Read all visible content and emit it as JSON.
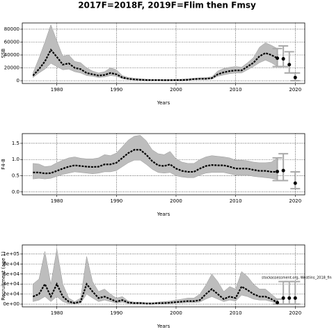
{
  "title": "2017F=2018F, 2019F=Flim then Fmsy",
  "chart_data": [
    {
      "type": "line",
      "ylabel": "SSB",
      "xlabel": "Years",
      "xlim": [
        1974.2,
        2021.6
      ],
      "xticks": [
        1980,
        1990,
        2000,
        2010,
        2020
      ],
      "ylim": [
        -4300,
        89700
      ],
      "yticks": [
        0,
        20000,
        40000,
        60000,
        80000
      ],
      "grid": true,
      "x": [
        1976,
        1977,
        1978,
        1979,
        1980,
        1981,
        1982,
        1983,
        1984,
        1985,
        1986,
        1987,
        1988,
        1989,
        1990,
        1991,
        1992,
        1993,
        1994,
        1995,
        1996,
        1997,
        1998,
        1999,
        2000,
        2001,
        2002,
        2003,
        2004,
        2005,
        2006,
        2007,
        2008,
        2009,
        2010,
        2011,
        2012,
        2013,
        2014,
        2015,
        2016,
        2017
      ],
      "values": [
        8000,
        18000,
        30000,
        48000,
        37000,
        25000,
        27000,
        20000,
        18000,
        12000,
        10000,
        8000,
        9000,
        12000,
        10000,
        5000,
        3000,
        2000,
        1500,
        1000,
        1000,
        1000,
        800,
        800,
        1000,
        1000,
        1500,
        2500,
        3000,
        3000,
        4000,
        10000,
        13000,
        15000,
        16000,
        16000,
        22000,
        28000,
        38000,
        43000,
        40000,
        35000
      ],
      "high": [
        12000,
        35000,
        60000,
        87000,
        62000,
        38000,
        40000,
        30000,
        28000,
        20000,
        15000,
        12000,
        14000,
        20000,
        17000,
        8000,
        5000,
        4000,
        3000,
        2500,
        2000,
        2000,
        2000,
        2000,
        2000,
        2500,
        3000,
        4000,
        4500,
        5000,
        6000,
        15000,
        19000,
        21000,
        22000,
        21000,
        28000,
        36000,
        52000,
        59000,
        55000,
        50000
      ],
      "low": [
        5000,
        12000,
        18000,
        27000,
        22000,
        17000,
        18000,
        14000,
        12000,
        8000,
        7000,
        5000,
        6000,
        8000,
        7000,
        3000,
        2000,
        1000,
        500,
        500,
        500,
        500,
        400,
        400,
        500,
        500,
        1000,
        1500,
        2000,
        2000,
        2500,
        7000,
        9000,
        11000,
        12000,
        12000,
        17000,
        22000,
        28000,
        32000,
        28000,
        22000
      ],
      "forecast": {
        "x": [
          2017,
          2018,
          2019,
          2020
        ],
        "values": [
          35000,
          34000,
          25000,
          5000
        ],
        "low": [
          22000,
          22000,
          12000,
          0
        ],
        "high": [
          50000,
          54000,
          45000,
          12000
        ]
      }
    },
    {
      "type": "line",
      "ylabel": "F4-8",
      "xlabel": "Years",
      "xlim": [
        1974.2,
        2021.6
      ],
      "xticks": [
        1980,
        1990,
        2000,
        2010,
        2020
      ],
      "ylim": [
        -0.09,
        1.8
      ],
      "yticks": [
        {
          "value": 0,
          "label": "0.0"
        },
        0.5,
        {
          "value": 1,
          "label": "1.0"
        },
        1.5
      ],
      "grid": true,
      "x": [
        1976,
        1977,
        1978,
        1979,
        1980,
        1981,
        1982,
        1983,
        1984,
        1985,
        1986,
        1987,
        1988,
        1989,
        1990,
        1991,
        1992,
        1993,
        1994,
        1995,
        1996,
        1997,
        1998,
        1999,
        2000,
        2001,
        2002,
        2003,
        2004,
        2005,
        2006,
        2007,
        2008,
        2009,
        2010,
        2011,
        2012,
        2013,
        2014,
        2015,
        2016,
        2017
      ],
      "values": [
        0.6,
        0.6,
        0.57,
        0.58,
        0.65,
        0.72,
        0.78,
        0.82,
        0.8,
        0.78,
        0.77,
        0.78,
        0.85,
        0.85,
        0.9,
        1.05,
        1.2,
        1.3,
        1.3,
        1.15,
        0.95,
        0.82,
        0.8,
        0.85,
        0.72,
        0.65,
        0.62,
        0.62,
        0.72,
        0.8,
        0.83,
        0.82,
        0.82,
        0.78,
        0.72,
        0.72,
        0.72,
        0.68,
        0.65,
        0.65,
        0.62,
        0.62
      ],
      "high": [
        0.88,
        0.86,
        0.78,
        0.8,
        0.9,
        0.98,
        1.05,
        1.08,
        1.04,
        1.02,
        1.02,
        1.05,
        1.15,
        1.12,
        1.2,
        1.4,
        1.6,
        1.72,
        1.75,
        1.58,
        1.3,
        1.18,
        1.15,
        1.25,
        1.02,
        0.92,
        0.88,
        0.88,
        1.0,
        1.08,
        1.12,
        1.1,
        1.08,
        1.05,
        0.98,
        0.98,
        0.96,
        0.92,
        0.9,
        0.9,
        0.92,
        1.05
      ],
      "low": [
        0.4,
        0.42,
        0.4,
        0.42,
        0.48,
        0.54,
        0.58,
        0.62,
        0.6,
        0.58,
        0.56,
        0.58,
        0.62,
        0.62,
        0.66,
        0.78,
        0.9,
        0.98,
        0.98,
        0.85,
        0.7,
        0.6,
        0.58,
        0.6,
        0.5,
        0.46,
        0.44,
        0.44,
        0.52,
        0.58,
        0.6,
        0.6,
        0.6,
        0.56,
        0.52,
        0.52,
        0.52,
        0.48,
        0.46,
        0.44,
        0.42,
        0.38
      ],
      "forecast": {
        "x": [
          2017,
          2018,
          2020
        ],
        "values": [
          0.63,
          0.66,
          0.27
        ],
        "low": [
          0.35,
          0.35,
          0.1
        ],
        "high": [
          1.05,
          1.18,
          0.62
        ]
      }
    },
    {
      "type": "line",
      "ylabel": "Recruitment (age 1)",
      "xlabel": "Years",
      "annotation": "stockassessment.org, Westlins_2018_fin",
      "xlim": [
        1974.2,
        2021.6
      ],
      "xticks": [
        1980,
        1990,
        2000,
        2010,
        2020
      ],
      "ylim": [
        -5500,
        118000
      ],
      "yticks": [
        {
          "value": 0,
          "label": "0e+00"
        },
        {
          "value": 20000,
          "label": "2e+04"
        },
        {
          "value": 40000,
          "label": "4e+04"
        },
        {
          "value": 60000,
          "label": "6e+04"
        },
        {
          "value": 80000,
          "label": "8e+04"
        },
        {
          "value": 100000,
          "label": "1e+05"
        }
      ],
      "grid": true,
      "x": [
        1976,
        1977,
        1978,
        1979,
        1980,
        1981,
        1982,
        1983,
        1984,
        1985,
        1986,
        1987,
        1988,
        1989,
        1990,
        1991,
        1992,
        1993,
        1994,
        1995,
        1996,
        1997,
        1998,
        1999,
        2000,
        2001,
        2002,
        2003,
        2004,
        2005,
        2006,
        2007,
        2008,
        2009,
        2010,
        2011,
        2012,
        2013,
        2014,
        2015,
        2016,
        2017
      ],
      "values": [
        15000,
        20000,
        40000,
        15000,
        40000,
        15000,
        5000,
        2000,
        5000,
        40000,
        25000,
        12000,
        15000,
        10000,
        5000,
        8000,
        3000,
        2000,
        2000,
        1000,
        1000,
        2000,
        2000,
        3000,
        4000,
        5000,
        6000,
        6000,
        8000,
        20000,
        30000,
        20000,
        10000,
        15000,
        12000,
        35000,
        28000,
        20000,
        15000,
        15000,
        10000,
        3000
      ],
      "high": [
        40000,
        50000,
        105000,
        40000,
        110000,
        40000,
        12000,
        5000,
        12000,
        95000,
        45000,
        25000,
        30000,
        20000,
        12000,
        15000,
        6000,
        4000,
        4000,
        3000,
        3000,
        4000,
        5000,
        6000,
        8000,
        10000,
        12000,
        12000,
        20000,
        38000,
        60000,
        45000,
        25000,
        35000,
        30000,
        65000,
        55000,
        40000,
        30000,
        30000,
        20000,
        10000
      ],
      "low": [
        5000,
        8000,
        15000,
        5000,
        15000,
        5000,
        1000,
        500,
        2000,
        20000,
        12000,
        5000,
        8000,
        5000,
        2000,
        4000,
        1000,
        500,
        500,
        300,
        300,
        800,
        800,
        1000,
        2000,
        2500,
        3000,
        3000,
        4000,
        10000,
        15000,
        10000,
        5000,
        8000,
        6000,
        18000,
        15000,
        10000,
        8000,
        8000,
        5000,
        1000
      ],
      "forecast": {
        "x": [
          2017,
          2018,
          2019,
          2020
        ],
        "values": [
          3000,
          12000,
          12000,
          12000
        ],
        "low": [
          0,
          0,
          0,
          0
        ],
        "high": [
          10000,
          45000,
          45000,
          45000
        ]
      }
    }
  ]
}
